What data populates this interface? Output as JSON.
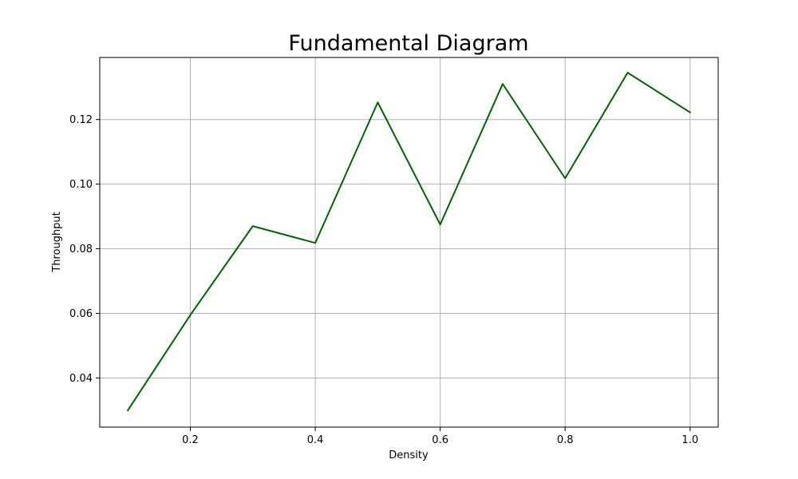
{
  "chart_data": {
    "type": "line",
    "title": "Fundamental Diagram",
    "xlabel": "Density",
    "ylabel": "Throughput",
    "xlim": [
      0.055,
      1.045
    ],
    "ylim": [
      0.0248,
      0.1392
    ],
    "xticks": [
      0.2,
      0.4,
      0.6,
      0.8,
      1.0
    ],
    "xtick_labels": [
      "0.2",
      "0.4",
      "0.6",
      "0.8",
      "1.0"
    ],
    "yticks": [
      0.04,
      0.06,
      0.08,
      0.1,
      0.12
    ],
    "ytick_labels": [
      "0.04",
      "0.06",
      "0.08",
      "0.10",
      "0.12"
    ],
    "grid": true,
    "series": [
      {
        "color": "#006400",
        "x": [
          0.1,
          0.2,
          0.3,
          0.4,
          0.5,
          0.6,
          0.7,
          0.8,
          0.9,
          1.0
        ],
        "y": [
          0.03,
          0.0595,
          0.087,
          0.0818,
          0.1253,
          0.0875,
          0.131,
          0.1018,
          0.1345,
          0.1222
        ]
      }
    ]
  }
}
